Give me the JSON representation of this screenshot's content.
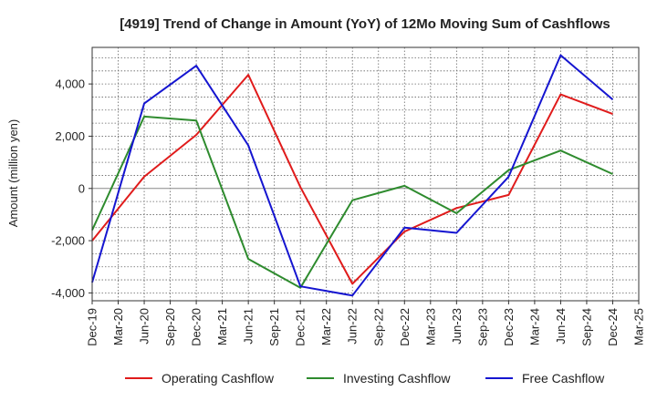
{
  "chart_data": {
    "type": "line",
    "title": "[4919]  Trend of Change in Amount (YoY) of 12Mo Moving Sum of Cashflows",
    "xlabel": "",
    "ylabel": "Amount (million yen)",
    "ylim": [
      -4300,
      5400
    ],
    "yticks": [
      -4000,
      -2000,
      0,
      2000,
      4000
    ],
    "ytick_labels": [
      "-4,000",
      "-2,000",
      "0",
      "2,000",
      "4,000"
    ],
    "categories": [
      "Dec-19",
      "Mar-20",
      "Jun-20",
      "Sep-20",
      "Dec-20",
      "Mar-21",
      "Jun-21",
      "Sep-21",
      "Dec-21",
      "Mar-22",
      "Jun-22",
      "Sep-22",
      "Dec-22",
      "Mar-23",
      "Jun-23",
      "Sep-23",
      "Dec-23",
      "Mar-24",
      "Jun-24",
      "Sep-24",
      "Dec-24",
      "Mar-25"
    ],
    "grid": true,
    "legend_position": "bottom",
    "series": [
      {
        "name": "Operating Cashflow",
        "color": "#e01b1b",
        "points": [
          [
            0,
            -2000
          ],
          [
            2,
            450
          ],
          [
            4,
            2050
          ],
          [
            6,
            4350
          ],
          [
            8,
            50
          ],
          [
            10,
            -3650
          ],
          [
            12,
            -1650
          ],
          [
            14,
            -750
          ],
          [
            16,
            -250
          ],
          [
            18,
            3600
          ],
          [
            20,
            2850
          ]
        ]
      },
      {
        "name": "Investing Cashflow",
        "color": "#2e8b2e",
        "points": [
          [
            0,
            -1600
          ],
          [
            2,
            2750
          ],
          [
            4,
            2600
          ],
          [
            6,
            -2700
          ],
          [
            8,
            -3800
          ],
          [
            10,
            -450
          ],
          [
            12,
            100
          ],
          [
            14,
            -950
          ],
          [
            16,
            700
          ],
          [
            18,
            1450
          ],
          [
            20,
            550
          ]
        ]
      },
      {
        "name": "Free Cashflow",
        "color": "#1515d0",
        "points": [
          [
            0,
            -3600
          ],
          [
            2,
            3250
          ],
          [
            4,
            4700
          ],
          [
            6,
            1650
          ],
          [
            8,
            -3750
          ],
          [
            10,
            -4100
          ],
          [
            12,
            -1500
          ],
          [
            14,
            -1700
          ],
          [
            16,
            450
          ],
          [
            18,
            5100
          ],
          [
            20,
            3400
          ]
        ]
      }
    ]
  }
}
